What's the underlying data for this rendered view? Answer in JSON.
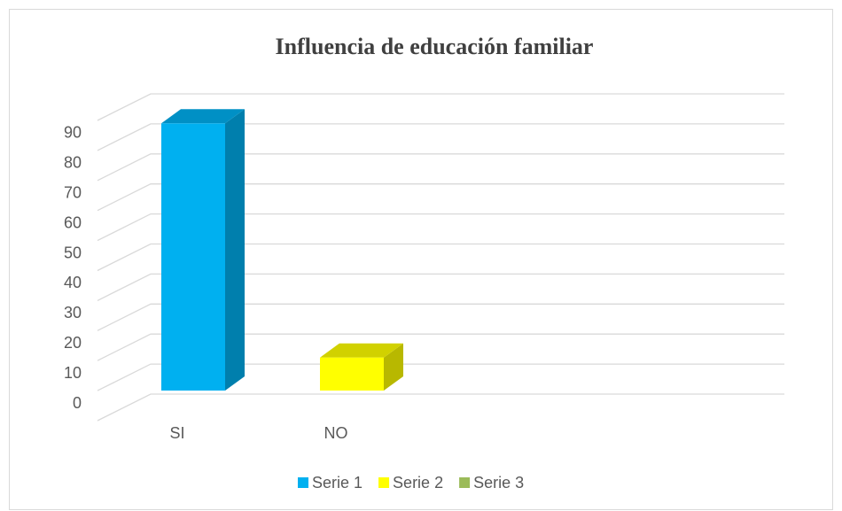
{
  "chart_data": {
    "type": "bar3d",
    "title": "Influencia de educación familiar",
    "categories": [
      "SI",
      "NO",
      null,
      null
    ],
    "series": [
      {
        "name": "Serie 1",
        "color": "#00b0f0",
        "values": [
          89,
          null,
          null,
          null
        ]
      },
      {
        "name": "Serie 2",
        "color": "#ffff00",
        "values": [
          null,
          11,
          null,
          null
        ]
      },
      {
        "name": "Serie 3",
        "color": "#9bbb59",
        "values": [
          null,
          null,
          null,
          null
        ]
      }
    ],
    "ylim": [
      0,
      100
    ],
    "yticks": [
      0,
      10,
      20,
      30,
      40,
      50,
      60,
      70,
      80,
      90
    ],
    "grid": true,
    "legend": "bottom"
  }
}
